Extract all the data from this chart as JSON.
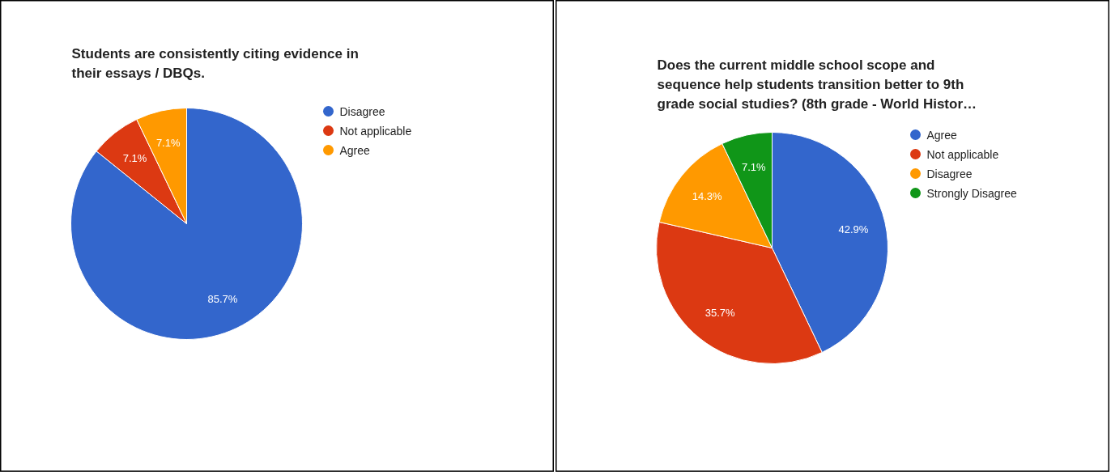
{
  "chart_data": [
    {
      "type": "pie",
      "title": "Students are consistently citing evidence in their essays / DBQs.",
      "categories": [
        "Disagree",
        "Not applicable",
        "Agree"
      ],
      "values": [
        85.7,
        7.1,
        7.1
      ],
      "colors": [
        "#3366cc",
        "#dc3912",
        "#ff9900"
      ],
      "value_labels": [
        "85.7%",
        "7.1%",
        "7.1%"
      ],
      "legend": "right"
    },
    {
      "type": "pie",
      "title": "Does the current middle school scope and sequence help students transition better to 9th grade social studies? (8th grade - World Histor…",
      "categories": [
        "Agree",
        "Not applicable",
        "Disagree",
        "Strongly Disagree"
      ],
      "values": [
        42.9,
        35.7,
        14.3,
        7.1
      ],
      "colors": [
        "#3366cc",
        "#dc3912",
        "#ff9900",
        "#109618"
      ],
      "value_labels": [
        "42.9%",
        "35.7%",
        "14.3%",
        "7.1%"
      ],
      "legend": "right"
    }
  ]
}
